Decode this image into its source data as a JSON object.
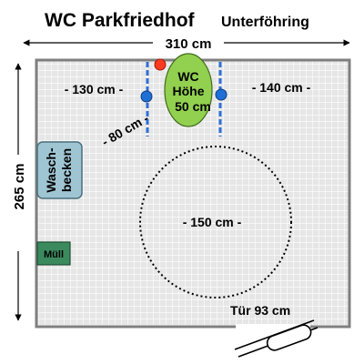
{
  "title": {
    "main": "WC Parkfriedhof",
    "sub": "Unterföhring"
  },
  "dimensions": {
    "width": "310 cm",
    "height": "265 cm",
    "left_of_wc": "- 130 cm -",
    "right_of_wc": "- 140 cm -",
    "diagonal": "- 80 cm -",
    "turning_circle": "- 150 cm -",
    "door": "Tür 93 cm"
  },
  "fixtures": {
    "wc_line1": "WC",
    "wc_line2": "Höhe",
    "wc_line3": "50 cm",
    "sink_line1": "Wasch-",
    "sink_line2": "becken",
    "bin": "Müll"
  },
  "colors": {
    "floor": "#e6e6e6",
    "grid": "#ffffff",
    "wall": "#7f7f7f",
    "wc": "#92d050",
    "sink": "#9fc5d3",
    "bin": "#3b8a5e",
    "grab_bar": "#1f4fb0",
    "alarm": "#ff3b1f",
    "rail": "#2f6fd6"
  }
}
